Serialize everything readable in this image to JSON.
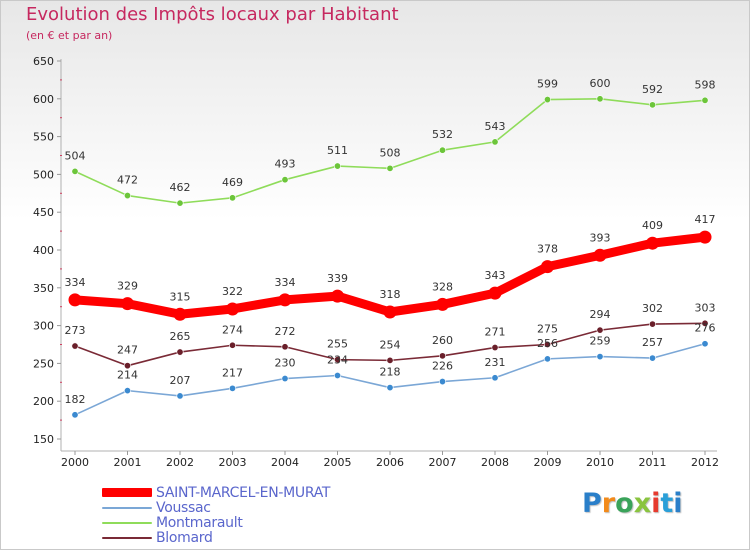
{
  "header": {
    "title": "Evolution des Impôts locaux par Habitant",
    "subtitle": "(en € et par an)"
  },
  "logo": {
    "text": "Proxiti",
    "colors": [
      "#2a7fc9",
      "#f28a1a",
      "#3aa35a",
      "#8ac43f",
      "#e63a2e",
      "#2a9fd8"
    ]
  },
  "chart_data": {
    "type": "line",
    "title": "Evolution des Impôts locaux par Habitant",
    "subtitle": "(en € et par an)",
    "x": [
      "2000",
      "2001",
      "2002",
      "2003",
      "2004",
      "2005",
      "2006",
      "2007",
      "2008",
      "2009",
      "2010",
      "2011",
      "2012"
    ],
    "ylim": [
      150,
      650
    ],
    "yticks": [
      150,
      200,
      250,
      300,
      350,
      400,
      450,
      500,
      550,
      600,
      650
    ],
    "grid": false,
    "legend_position": "bottom-left",
    "series": [
      {
        "name": "SAINT-MARCEL-EN-MURAT",
        "color": "#ff0000",
        "marker_color": "#ff0000",
        "emphasis": true,
        "values": [
          334,
          329,
          315,
          322,
          334,
          339,
          318,
          328,
          343,
          378,
          393,
          409,
          417
        ]
      },
      {
        "name": "Voussac",
        "color": "#7ba7d6",
        "marker_color": "#3b8ad0",
        "emphasis": false,
        "values": [
          182,
          214,
          207,
          217,
          230,
          234,
          218,
          226,
          231,
          256,
          259,
          257,
          276
        ]
      },
      {
        "name": "Montmarault",
        "color": "#8fdc5a",
        "marker_color": "#6cc53a",
        "emphasis": false,
        "values": [
          504,
          472,
          462,
          469,
          493,
          511,
          508,
          532,
          543,
          599,
          600,
          592,
          598
        ]
      },
      {
        "name": "Blomard",
        "color": "#7a2a36",
        "marker_color": "#6a1f2a",
        "emphasis": false,
        "values": [
          273,
          247,
          265,
          274,
          272,
          255,
          254,
          260,
          271,
          275,
          294,
          302,
          303
        ]
      }
    ],
    "data_label_labels": {
      "SAINT-MARCEL-EN-MURAT": [
        "334",
        "329",
        "315",
        "322",
        "334",
        "339",
        "318",
        "328",
        "343",
        "378",
        "393",
        "409",
        "417"
      ],
      "Voussac": [
        "182",
        "214",
        "207",
        "217",
        "230",
        "234",
        "218",
        "226",
        "231",
        "256",
        "259",
        "257",
        "276"
      ],
      "Montmarault": [
        "504",
        "472",
        "462",
        "469",
        "493",
        "511",
        "508",
        "532",
        "543",
        "599",
        "600",
        "592",
        "598"
      ],
      "Blomard": [
        "273",
        "247",
        "265",
        "274",
        "272",
        "255",
        "254",
        "260",
        "271",
        "275",
        "294",
        "302",
        "303"
      ]
    }
  }
}
